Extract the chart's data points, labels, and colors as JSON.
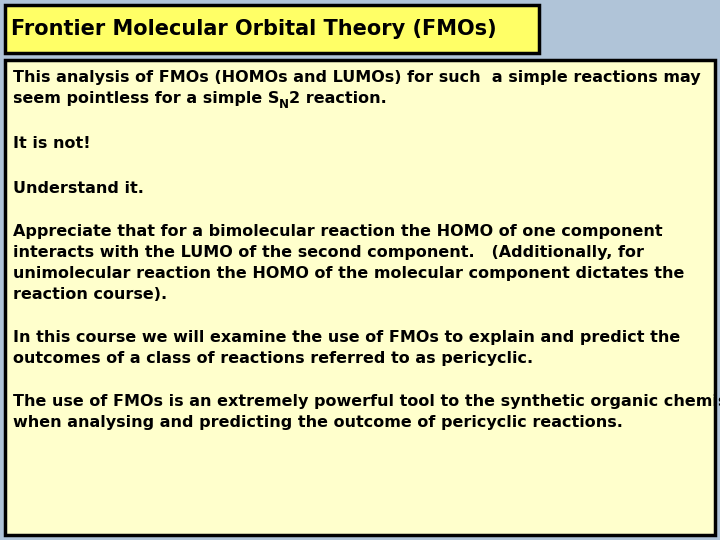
{
  "title": "Frontier Molecular Orbital Theory (FMOs)",
  "title_bg": "#ffff66",
  "title_border": "#000000",
  "title_color": "#000000",
  "body_bg": "#ffffcc",
  "body_border": "#000000",
  "outer_bg": "#b0c4d8",
  "paragraph1_line1": "This analysis of FMOs (HOMOs and LUMOs) for such  a simple reactions may",
  "paragraph1_line2_pre": "seem pointless for a simple S",
  "paragraph1_line2_sub": "N",
  "paragraph1_line2_post": "2 reaction.",
  "paragraph2": "It is not!",
  "paragraph3": "Understand it.",
  "paragraph4_lines": [
    "Appreciate that for a bimolecular reaction the HOMO of one component",
    "interacts with the LUMO of the second component.   (Additionally, for",
    "unimolecular reaction the HOMO of the molecular component dictates the",
    "reaction course)."
  ],
  "paragraph5_lines": [
    "In this course we will examine the use of FMOs to explain and predict the",
    "outcomes of a class of reactions referred to as pericyclic."
  ],
  "paragraph6_lines": [
    "The use of FMOs is an extremely powerful tool to the synthetic organic chemist",
    "when analysing and predicting the outcome of pericyclic reactions."
  ],
  "text_color": "#000000",
  "font_size_title": 15,
  "font_size_body": 11.5
}
